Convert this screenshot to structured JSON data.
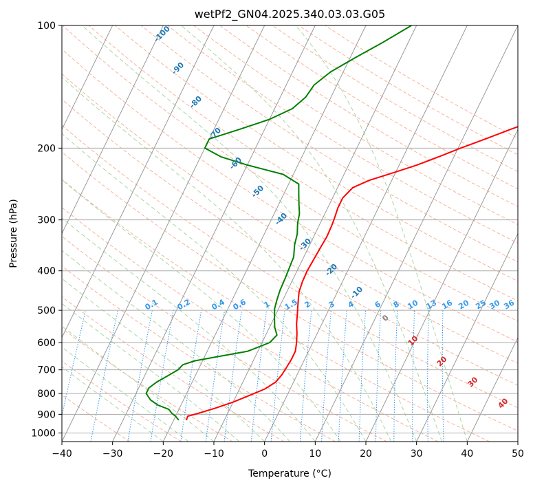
{
  "chart_data": {
    "type": "line",
    "subtype": "skew-T log-P diagram",
    "title": "wetPf2_GN04.2025.340.03.03.G05",
    "xlabel": "Temperature (°C)",
    "ylabel": "Pressure (hPa)",
    "xlim": [
      -40,
      50
    ],
    "ylim": [
      1050,
      100
    ],
    "y_scale": "log",
    "x_ticks": [
      "−40",
      "−30",
      "−20",
      "−10",
      "0",
      "10",
      "20",
      "30",
      "40",
      "50"
    ],
    "y_ticks": [
      "100",
      "200",
      "300",
      "400",
      "500",
      "600",
      "700",
      "800",
      "900",
      "1000"
    ],
    "grid": true,
    "series": [
      {
        "color": "#ff0000",
        "pressure": [
          930,
          910,
          895,
          870,
          840,
          810,
          780,
          750,
          720,
          690,
          660,
          630,
          600,
          570,
          540,
          510,
          490,
          470,
          450,
          425,
          400,
          375,
          350,
          330,
          310,
          295,
          280,
          265,
          250,
          240,
          230,
          220,
          210,
          200,
          190,
          180,
          170,
          160,
          150,
          140,
          130,
          120,
          110,
          100
        ],
        "temperature": [
          -17.5,
          -17.6,
          -15.8,
          -13.0,
          -10.0,
          -7.5,
          -5.0,
          -3.5,
          -3.0,
          -2.8,
          -2.6,
          -2.6,
          -3.2,
          -4.0,
          -5.0,
          -5.8,
          -6.4,
          -7.0,
          -7.6,
          -7.9,
          -8.0,
          -7.8,
          -7.6,
          -7.4,
          -7.5,
          -7.7,
          -8.0,
          -8.0,
          -7.0,
          -4.5,
          -0.5,
          3.5,
          7.0,
          10.5,
          14.5,
          18.5,
          23.0,
          27.0,
          30.5,
          33.5,
          36.0,
          39.5,
          43.5,
          47.5
        ]
      },
      {
        "color": "#008000",
        "pressure": [
          930,
          910,
          895,
          875,
          855,
          830,
          800,
          775,
          750,
          725,
          700,
          680,
          665,
          650,
          630,
          600,
          575,
          550,
          520,
          495,
          470,
          445,
          420,
          395,
          370,
          345,
          325,
          305,
          290,
          275,
          260,
          245,
          232,
          220,
          210,
          200,
          190,
          180,
          170,
          160,
          150,
          140,
          130,
          120,
          110,
          100
        ],
        "temperature": [
          -19.0,
          -20.0,
          -21.0,
          -22.0,
          -24.5,
          -26.5,
          -28.0,
          -28.0,
          -27.0,
          -25.5,
          -24.0,
          -23.5,
          -21.5,
          -17.5,
          -12.0,
          -8.5,
          -7.8,
          -9.0,
          -10.0,
          -10.8,
          -11.2,
          -11.5,
          -11.6,
          -11.8,
          -12.0,
          -13.0,
          -13.5,
          -14.5,
          -15.0,
          -16.0,
          -17.0,
          -18.0,
          -22.0,
          -30.0,
          -36.0,
          -40.0,
          -40.0,
          -35.0,
          -30.0,
          -26.5,
          -25.0,
          -24.5,
          -22.5,
          -19.0,
          -15.0,
          -11.0
        ]
      }
    ],
    "dry_adiabat_labels": [
      "-100",
      "-90",
      "-80",
      "-70",
      "-60",
      "-50",
      "-40",
      "-30",
      "-20",
      "-10"
    ],
    "mixing_ratio_labels": [
      "0.1",
      "0.2",
      "0.4",
      "0.6",
      "1",
      "1.5",
      "2",
      "3",
      "4",
      "6",
      "8",
      "10",
      "13",
      "16",
      "20",
      "25",
      "30",
      "36"
    ],
    "moist_adiabat_labels": [
      "0",
      "10",
      "20",
      "30",
      "40"
    ],
    "colors": {
      "temperature_line": "#ff0000",
      "dewpoint_line": "#008000",
      "isotherm": "#999999",
      "isobar": "#aaaaaa",
      "dry_adiabat": "#f7b29a",
      "moist_adiabat": "#a9d6a3",
      "mixing_ratio": "#3399ee",
      "dry_adiabat_label": "#1f77b4",
      "moist_adiabat_label": "#d62728",
      "mixing_ratio_label": "#3399ee",
      "zero_label": "#888888"
    }
  }
}
